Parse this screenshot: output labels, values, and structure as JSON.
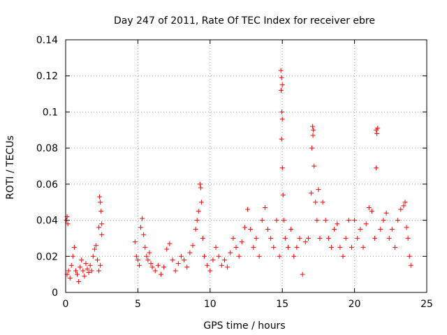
{
  "chart_data": {
    "type": "scatter",
    "title": "Day 247 of 2011, Rate Of TEC Index for receiver ebre",
    "xlabel": "GPS time / hours",
    "ylabel": "ROTI / TECUs",
    "xlim": [
      0,
      25
    ],
    "ylim": [
      0,
      0.14
    ],
    "xticks": [
      0,
      5,
      10,
      15,
      20,
      25
    ],
    "xtick_labels": [
      "0",
      "5",
      "10",
      "15",
      "20",
      "25"
    ],
    "yticks": [
      0,
      0.02,
      0.04,
      0.06,
      0.08,
      0.1,
      0.12,
      0.14
    ],
    "ytick_labels": [
      "0",
      "0.02",
      "0.04",
      "0.06",
      "0.08",
      "0.1",
      "0.12",
      "0.14"
    ],
    "grid": true,
    "marker": "plus",
    "color": "#ff0000",
    "series": [
      {
        "points": [
          [
            0.05,
            0.04
          ],
          [
            0.1,
            0.042
          ],
          [
            0.15,
            0.038
          ],
          [
            0.1,
            0.01
          ],
          [
            0.2,
            0.012
          ],
          [
            0.3,
            0.008
          ],
          [
            0.4,
            0.015
          ],
          [
            0.5,
            0.02
          ],
          [
            0.6,
            0.025
          ],
          [
            0.7,
            0.012
          ],
          [
            0.8,
            0.01
          ],
          [
            0.9,
            0.006
          ],
          [
            1.0,
            0.014
          ],
          [
            1.1,
            0.018
          ],
          [
            1.2,
            0.012
          ],
          [
            1.3,
            0.009
          ],
          [
            1.4,
            0.016
          ],
          [
            1.5,
            0.013
          ],
          [
            1.6,
            0.011
          ],
          [
            1.7,
            0.015
          ],
          [
            1.8,
            0.012
          ],
          [
            1.9,
            0.02
          ],
          [
            2.0,
            0.024
          ],
          [
            2.1,
            0.026
          ],
          [
            2.2,
            0.018
          ],
          [
            2.3,
            0.036
          ],
          [
            2.35,
            0.053
          ],
          [
            2.4,
            0.05
          ],
          [
            2.45,
            0.045
          ],
          [
            2.5,
            0.038
          ],
          [
            2.4,
            0.015
          ],
          [
            2.3,
            0.012
          ],
          [
            2.5,
            0.032
          ],
          [
            4.8,
            0.028
          ],
          [
            4.9,
            0.02
          ],
          [
            5.0,
            0.018
          ],
          [
            5.1,
            0.015
          ],
          [
            5.2,
            0.036
          ],
          [
            5.3,
            0.041
          ],
          [
            5.4,
            0.032
          ],
          [
            5.5,
            0.025
          ],
          [
            5.6,
            0.02
          ],
          [
            5.7,
            0.018
          ],
          [
            5.8,
            0.022
          ],
          [
            5.9,
            0.016
          ],
          [
            6.0,
            0.014
          ],
          [
            6.2,
            0.012
          ],
          [
            6.4,
            0.015
          ],
          [
            6.6,
            0.01
          ],
          [
            6.8,
            0.014
          ],
          [
            7.0,
            0.024
          ],
          [
            7.2,
            0.027
          ],
          [
            7.4,
            0.018
          ],
          [
            7.6,
            0.012
          ],
          [
            7.8,
            0.016
          ],
          [
            8.0,
            0.02
          ],
          [
            8.2,
            0.018
          ],
          [
            8.4,
            0.014
          ],
          [
            8.6,
            0.022
          ],
          [
            8.8,
            0.026
          ],
          [
            9.0,
            0.035
          ],
          [
            9.1,
            0.04
          ],
          [
            9.2,
            0.045
          ],
          [
            9.3,
            0.06
          ],
          [
            9.35,
            0.058
          ],
          [
            9.4,
            0.05
          ],
          [
            9.5,
            0.03
          ],
          [
            9.6,
            0.02
          ],
          [
            9.8,
            0.015
          ],
          [
            10.0,
            0.012
          ],
          [
            10.2,
            0.018
          ],
          [
            10.4,
            0.025
          ],
          [
            10.6,
            0.02
          ],
          [
            10.8,
            0.015
          ],
          [
            11.0,
            0.018
          ],
          [
            11.2,
            0.014
          ],
          [
            11.4,
            0.022
          ],
          [
            11.6,
            0.03
          ],
          [
            11.8,
            0.025
          ],
          [
            12.0,
            0.02
          ],
          [
            12.2,
            0.028
          ],
          [
            12.4,
            0.036
          ],
          [
            12.6,
            0.046
          ],
          [
            12.8,
            0.035
          ],
          [
            13.0,
            0.025
          ],
          [
            13.2,
            0.03
          ],
          [
            13.4,
            0.02
          ],
          [
            13.6,
            0.04
          ],
          [
            13.8,
            0.047
          ],
          [
            14.0,
            0.035
          ],
          [
            14.2,
            0.03
          ],
          [
            14.4,
            0.025
          ],
          [
            14.6,
            0.04
          ],
          [
            14.8,
            0.02
          ],
          [
            14.9,
            0.123
          ],
          [
            14.95,
            0.119
          ],
          [
            15.0,
            0.115
          ],
          [
            14.92,
            0.112
          ],
          [
            14.97,
            0.1
          ],
          [
            15.0,
            0.096
          ],
          [
            14.95,
            0.085
          ],
          [
            15.0,
            0.069
          ],
          [
            15.05,
            0.054
          ],
          [
            15.1,
            0.04
          ],
          [
            15.2,
            0.03
          ],
          [
            15.4,
            0.025
          ],
          [
            15.6,
            0.035
          ],
          [
            15.8,
            0.02
          ],
          [
            16.0,
            0.025
          ],
          [
            16.2,
            0.03
          ],
          [
            16.4,
            0.01
          ],
          [
            16.6,
            0.028
          ],
          [
            16.8,
            0.03
          ],
          [
            17.0,
            0.055
          ],
          [
            17.05,
            0.08
          ],
          [
            17.1,
            0.092
          ],
          [
            17.15,
            0.09
          ],
          [
            17.12,
            0.087
          ],
          [
            17.2,
            0.07
          ],
          [
            17.3,
            0.05
          ],
          [
            17.4,
            0.04
          ],
          [
            17.5,
            0.057
          ],
          [
            17.6,
            0.03
          ],
          [
            17.8,
            0.05
          ],
          [
            18.0,
            0.04
          ],
          [
            18.2,
            0.03
          ],
          [
            18.4,
            0.025
          ],
          [
            18.6,
            0.035
          ],
          [
            18.8,
            0.038
          ],
          [
            19.0,
            0.025
          ],
          [
            19.2,
            0.02
          ],
          [
            19.4,
            0.03
          ],
          [
            19.6,
            0.04
          ],
          [
            19.8,
            0.025
          ],
          [
            20.0,
            0.04
          ],
          [
            20.2,
            0.03
          ],
          [
            20.4,
            0.035
          ],
          [
            20.6,
            0.025
          ],
          [
            20.8,
            0.038
          ],
          [
            21.0,
            0.047
          ],
          [
            21.2,
            0.045
          ],
          [
            21.4,
            0.03
          ],
          [
            21.5,
            0.09
          ],
          [
            21.55,
            0.088
          ],
          [
            21.6,
            0.091
          ],
          [
            21.5,
            0.069
          ],
          [
            21.8,
            0.035
          ],
          [
            22.0,
            0.04
          ],
          [
            22.2,
            0.044
          ],
          [
            22.4,
            0.03
          ],
          [
            22.6,
            0.035
          ],
          [
            22.8,
            0.025
          ],
          [
            23.0,
            0.04
          ],
          [
            23.2,
            0.046
          ],
          [
            23.4,
            0.048
          ],
          [
            23.5,
            0.05
          ],
          [
            23.6,
            0.036
          ],
          [
            23.7,
            0.03
          ],
          [
            23.8,
            0.02
          ],
          [
            23.9,
            0.015
          ]
        ]
      }
    ]
  }
}
